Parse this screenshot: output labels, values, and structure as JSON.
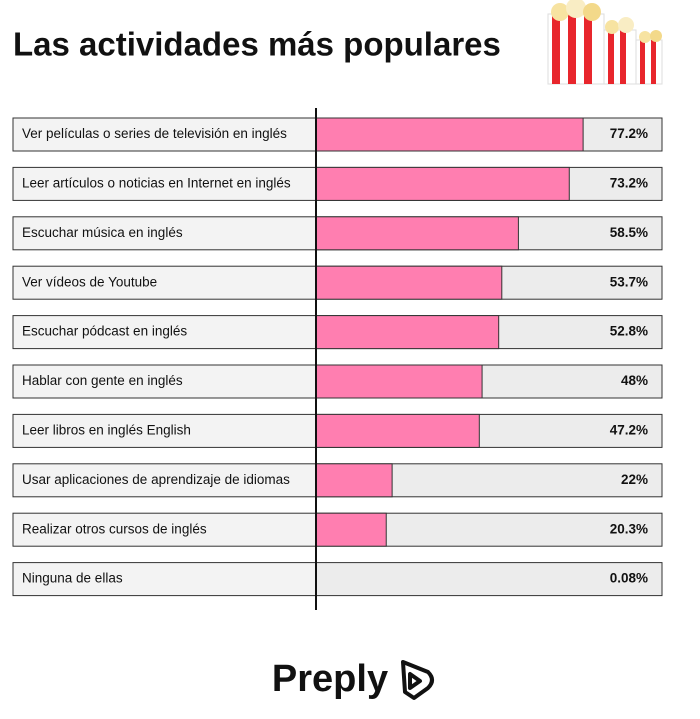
{
  "chart_data": {
    "type": "hbar",
    "title": "Las actividades más populares",
    "categories": [
      "Ver películas o series de televisión en inglés",
      "Leer artículos o noticias en Internet en inglés",
      "Escuchar música en inglés",
      "Ver vídeos de Youtube",
      "Escuchar pódcast en inglés",
      "Hablar con gente en inglés",
      "Leer libros en inglés English",
      "Usar aplicaciones de aprendizaje de idiomas",
      "Realizar otros cursos de inglés",
      "Ninguna de ellas"
    ],
    "values": [
      77.2,
      73.2,
      58.5,
      53.7,
      52.8,
      48,
      47.2,
      22,
      20.3,
      0.08
    ],
    "value_labels": [
      "77.2%",
      "73.2%",
      "58.5%",
      "53.7%",
      "52.8%",
      "48%",
      "47.2%",
      "22%",
      "20.3%",
      "0.08%"
    ],
    "color": "#ff7eb0",
    "track_color": "#ececec",
    "xlim": [
      0,
      100
    ]
  },
  "brand": "Preply"
}
